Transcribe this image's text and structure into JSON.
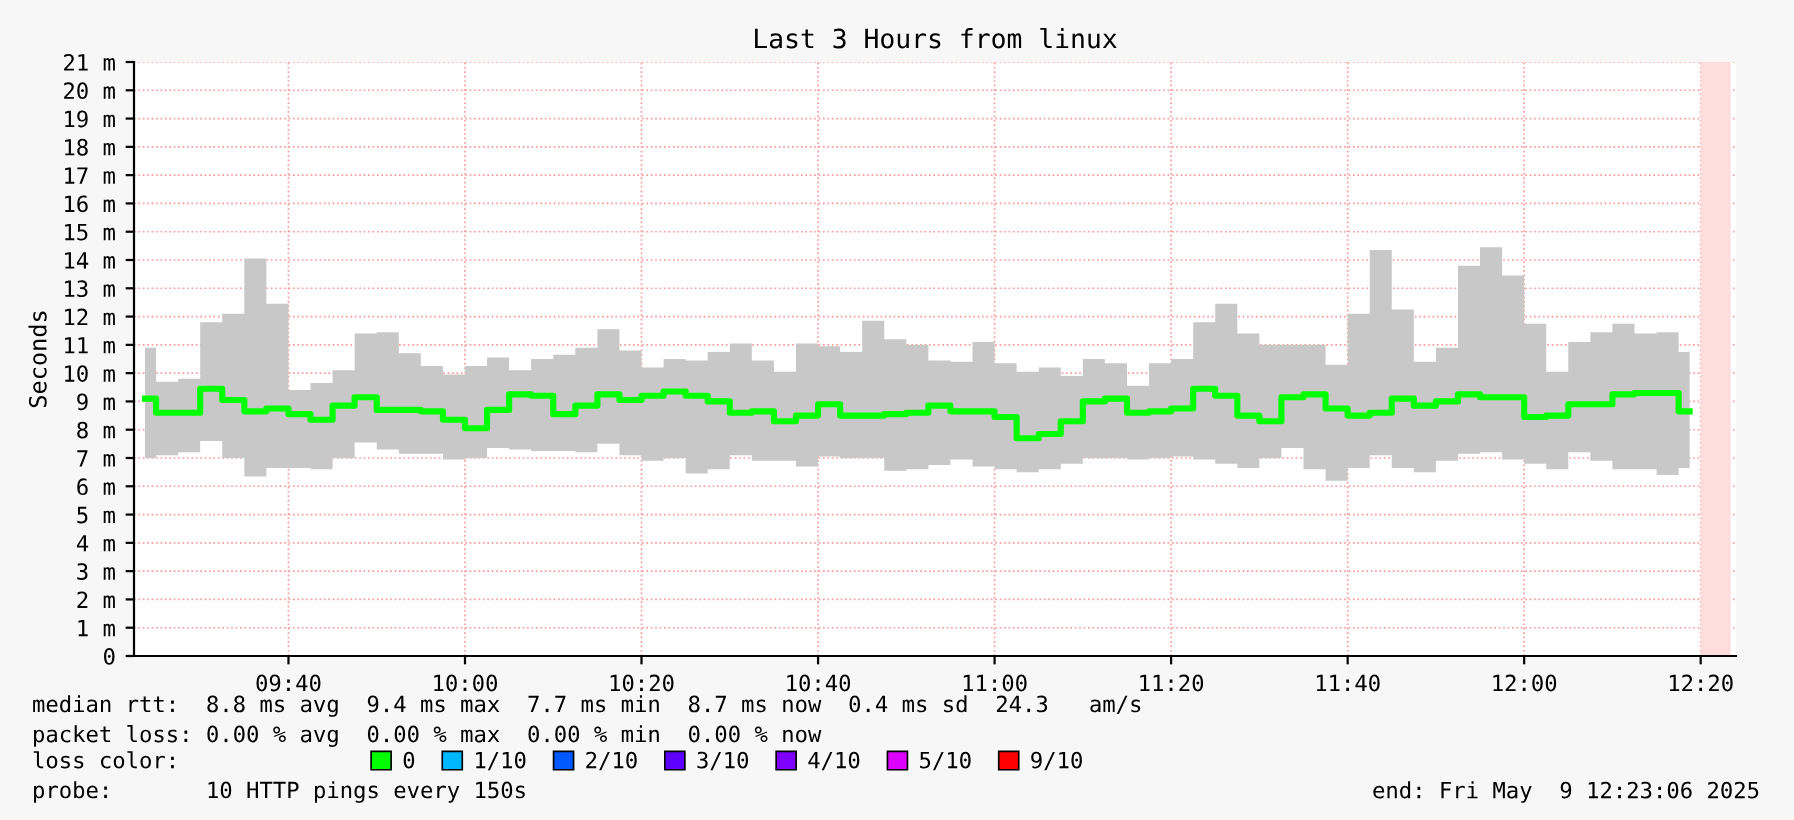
{
  "chart_data": {
    "type": "step",
    "title": "Last 3 Hours from linux",
    "ylabel": "Seconds",
    "x": [
      9.3958,
      9.4375,
      9.4792,
      9.5208,
      9.5625,
      9.6042,
      9.6458,
      9.6875,
      9.7292,
      9.7708,
      9.8125,
      9.8542,
      9.8958,
      9.9375,
      9.9792,
      10.0208,
      10.0625,
      10.1042,
      10.1458,
      10.1875,
      10.2292,
      10.2708,
      10.3125,
      10.3542,
      10.3958,
      10.4375,
      10.4792,
      10.5208,
      10.5625,
      10.6042,
      10.6458,
      10.6875,
      10.7292,
      10.7708,
      10.8125,
      10.8542,
      10.8958,
      10.9375,
      10.9792,
      11.0208,
      11.0625,
      11.1042,
      11.1458,
      11.1875,
      11.2292,
      11.2708,
      11.3125,
      11.3542,
      11.3958,
      11.4375,
      11.4792,
      11.5208,
      11.5625,
      11.6042,
      11.6458,
      11.6875,
      11.7292,
      11.7708,
      11.8125,
      11.8542,
      11.8958,
      11.9375,
      11.9792,
      12.0208,
      12.0625,
      12.1042,
      12.1458,
      12.1875,
      12.2292,
      12.2708,
      12.3125
    ],
    "series": [
      {
        "name": "0",
        "color": "#00ff00",
        "values": [
          9.1,
          8.6,
          8.6,
          9.45,
          9.05,
          8.65,
          8.75,
          8.55,
          8.35,
          8.85,
          9.15,
          8.7,
          8.7,
          8.65,
          8.35,
          8.05,
          8.7,
          9.25,
          9.2,
          8.55,
          8.85,
          9.25,
          9.05,
          9.2,
          9.35,
          9.2,
          9.0,
          8.6,
          8.65,
          8.3,
          8.5,
          8.9,
          8.5,
          8.5,
          8.55,
          8.6,
          8.85,
          8.65,
          8.65,
          8.45,
          7.7,
          7.85,
          8.3,
          9.0,
          9.1,
          8.6,
          8.65,
          8.75,
          9.45,
          9.2,
          8.5,
          8.3,
          9.15,
          9.25,
          8.75,
          8.5,
          8.6,
          9.1,
          8.85,
          9.0,
          9.25,
          9.15,
          9.15,
          8.45,
          8.5,
          8.9,
          8.9,
          9.25,
          9.3,
          9.3,
          8.65
        ],
        "lower": [
          7.0,
          7.1,
          7.2,
          7.6,
          7.0,
          6.35,
          6.65,
          6.65,
          6.6,
          7.0,
          7.55,
          7.3,
          7.15,
          7.15,
          6.95,
          7.0,
          7.35,
          7.3,
          7.25,
          7.25,
          7.2,
          7.5,
          7.1,
          6.9,
          7.0,
          6.45,
          6.6,
          7.1,
          6.9,
          6.9,
          6.7,
          7.05,
          7.0,
          7.0,
          6.55,
          6.6,
          6.75,
          6.95,
          6.7,
          6.6,
          6.5,
          6.6,
          6.8,
          7.0,
          7.0,
          6.95,
          7.0,
          7.05,
          6.95,
          6.8,
          6.65,
          7.0,
          7.35,
          6.6,
          6.2,
          6.65,
          7.1,
          6.65,
          6.5,
          6.9,
          7.15,
          7.2,
          6.95,
          6.8,
          6.6,
          7.2,
          6.9,
          6.6,
          6.6,
          6.4,
          6.65
        ],
        "upper": [
          10.9,
          9.7,
          9.8,
          11.8,
          12.1,
          14.05,
          12.45,
          9.4,
          9.65,
          10.1,
          11.4,
          11.45,
          10.7,
          10.25,
          9.95,
          10.25,
          10.55,
          10.1,
          10.5,
          10.65,
          10.9,
          11.55,
          10.8,
          10.2,
          10.5,
          10.45,
          10.75,
          11.05,
          10.45,
          10.05,
          11.05,
          10.95,
          10.75,
          11.85,
          11.2,
          11.0,
          10.45,
          10.4,
          11.1,
          10.35,
          10.05,
          10.2,
          9.9,
          10.5,
          10.35,
          9.55,
          10.35,
          10.5,
          11.8,
          12.45,
          11.4,
          11.0,
          11.0,
          11.0,
          10.3,
          12.1,
          14.35,
          12.25,
          10.4,
          10.9,
          13.8,
          14.45,
          13.45,
          11.75,
          10.05,
          11.1,
          11.45,
          11.75,
          11.4,
          11.45,
          10.75
        ]
      },
      {
        "name": "1/10",
        "color": "#00b8ff",
        "values": [
          null,
          null,
          null,
          null,
          null,
          null,
          null,
          null,
          null,
          null,
          null,
          null,
          null,
          null,
          null,
          null,
          null,
          null,
          null,
          null,
          null,
          null,
          null,
          null,
          null,
          null,
          null,
          null,
          null,
          null,
          null,
          null,
          null,
          null,
          null,
          null,
          null,
          null,
          null,
          null,
          null,
          null,
          null,
          null,
          null,
          null,
          null,
          null,
          null,
          null,
          null,
          null,
          null,
          null,
          null,
          null,
          null,
          null,
          null,
          null,
          null,
          null,
          null,
          null,
          null,
          null,
          null,
          null,
          null,
          null,
          null
        ]
      },
      {
        "name": "2/10",
        "color": "#0059ff",
        "values": [
          null,
          null,
          null,
          null,
          null,
          null,
          null,
          null,
          null,
          null,
          null,
          null,
          null,
          null,
          null,
          null,
          null,
          null,
          null,
          null,
          null,
          null,
          null,
          null,
          null,
          null,
          null,
          null,
          null,
          null,
          null,
          null,
          null,
          null,
          null,
          null,
          null,
          null,
          null,
          null,
          null,
          null,
          null,
          null,
          null,
          null,
          null,
          null,
          null,
          null,
          null,
          null,
          null,
          null,
          null,
          null,
          null,
          null,
          null,
          null,
          null,
          null,
          null,
          null,
          null,
          null,
          null,
          null,
          null,
          null,
          null
        ]
      },
      {
        "name": "3/10",
        "color": "#5e00ff",
        "values": [
          null,
          null,
          null,
          null,
          null,
          null,
          null,
          null,
          null,
          null,
          null,
          null,
          null,
          null,
          null,
          null,
          null,
          null,
          null,
          null,
          null,
          null,
          null,
          null,
          null,
          null,
          null,
          null,
          null,
          null,
          null,
          null,
          null,
          null,
          null,
          null,
          null,
          null,
          null,
          null,
          null,
          null,
          null,
          null,
          null,
          null,
          null,
          null,
          null,
          null,
          null,
          null,
          null,
          null,
          null,
          null,
          null,
          null,
          null,
          null,
          null,
          null,
          null,
          null,
          null,
          null,
          null,
          null,
          null,
          null,
          null
        ]
      },
      {
        "name": "4/10",
        "color": "#7e00ff",
        "values": [
          null,
          null,
          null,
          null,
          null,
          null,
          null,
          null,
          null,
          null,
          null,
          null,
          null,
          null,
          null,
          null,
          null,
          null,
          null,
          null,
          null,
          null,
          null,
          null,
          null,
          null,
          null,
          null,
          null,
          null,
          null,
          null,
          null,
          null,
          null,
          null,
          null,
          null,
          null,
          null,
          null,
          null,
          null,
          null,
          null,
          null,
          null,
          null,
          null,
          null,
          null,
          null,
          null,
          null,
          null,
          null,
          null,
          null,
          null,
          null,
          null,
          null,
          null,
          null,
          null,
          null,
          null,
          null,
          null,
          null,
          null
        ]
      },
      {
        "name": "5/10",
        "color": "#dd00ff",
        "values": [
          null,
          null,
          null,
          null,
          null,
          null,
          null,
          null,
          null,
          null,
          null,
          null,
          null,
          null,
          null,
          null,
          null,
          null,
          null,
          null,
          null,
          null,
          null,
          null,
          null,
          null,
          null,
          null,
          null,
          null,
          null,
          null,
          null,
          null,
          null,
          null,
          null,
          null,
          null,
          null,
          null,
          null,
          null,
          null,
          null,
          null,
          null,
          null,
          null,
          null,
          null,
          null,
          null,
          null,
          null,
          null,
          null,
          null,
          null,
          null,
          null,
          null,
          null,
          null,
          null,
          null,
          null,
          null,
          null,
          null,
          null
        ]
      },
      {
        "name": "9/10",
        "color": "#ff0000",
        "values": [
          null,
          null,
          null,
          null,
          null,
          null,
          null,
          null,
          null,
          null,
          null,
          null,
          null,
          null,
          null,
          null,
          null,
          null,
          null,
          null,
          null,
          null,
          null,
          null,
          null,
          null,
          null,
          null,
          null,
          null,
          null,
          null,
          null,
          null,
          null,
          null,
          null,
          null,
          null,
          null,
          null,
          null,
          null,
          null,
          null,
          null,
          null,
          null,
          null,
          null,
          null,
          null,
          null,
          null,
          null,
          null,
          null,
          null,
          null,
          null,
          null,
          null,
          null,
          null,
          null,
          null,
          null,
          null,
          null,
          null,
          null
        ]
      }
    ],
    "xlim": [
      9.375,
      12.4
    ],
    "ylim": [
      0,
      21
    ],
    "xticks": [
      {
        "value": 9.6667,
        "label": "09:40"
      },
      {
        "value": 10,
        "label": "10:00"
      },
      {
        "value": 10.3333,
        "label": "10:20"
      },
      {
        "value": 10.6667,
        "label": "10:40"
      },
      {
        "value": 11,
        "label": "11:00"
      },
      {
        "value": 11.3333,
        "label": "11:20"
      },
      {
        "value": 11.6667,
        "label": "11:40"
      },
      {
        "value": 12,
        "label": "12:00"
      },
      {
        "value": 12.3333,
        "label": "12:20"
      }
    ],
    "yticks": [
      0,
      {
        "value": 1,
        "label": "1 m"
      },
      {
        "value": 2,
        "label": "2 m"
      },
      {
        "value": 3,
        "label": "3 m"
      },
      {
        "value": 4,
        "label": "4 m"
      },
      {
        "value": 5,
        "label": "5 m"
      },
      {
        "value": 6,
        "label": "6 m"
      },
      {
        "value": 7,
        "label": "7 m"
      },
      {
        "value": 8,
        "label": "8 m"
      },
      {
        "value": 9,
        "label": "9 m"
      },
      {
        "value": 10,
        "label": "10 m"
      },
      {
        "value": 11,
        "label": "11 m"
      },
      {
        "value": 12,
        "label": "12 m"
      },
      {
        "value": 13,
        "label": "13 m"
      },
      {
        "value": 14,
        "label": "14 m"
      },
      {
        "value": 15,
        "label": "15 m"
      },
      {
        "value": 16,
        "label": "16 m"
      },
      {
        "value": 17,
        "label": "17 m"
      },
      {
        "value": 18,
        "label": "18 m"
      },
      {
        "value": 19,
        "label": "19 m"
      },
      {
        "value": 20,
        "label": "20 m"
      },
      {
        "value": 21,
        "label": "21 m"
      }
    ],
    "bands": [
      {
        "axis": "x",
        "from": 12.3333,
        "to": 12.39,
        "color": "#ffdddd"
      }
    ],
    "grid": true,
    "legend": "bottom",
    "annotations": [
      "median rtt:  8.8 ms avg  9.4 ms max  7.7 ms min  8.7 ms now  0.4 ms sd  24.3   am/s",
      "packet loss: 0.00 % avg  0.00 % max  0.00 % min  0.00 % now",
      "loss color:",
      "probe:       10 HTTP pings every 150s",
      "end: Fri May  9 12:23:06 2025"
    ]
  }
}
